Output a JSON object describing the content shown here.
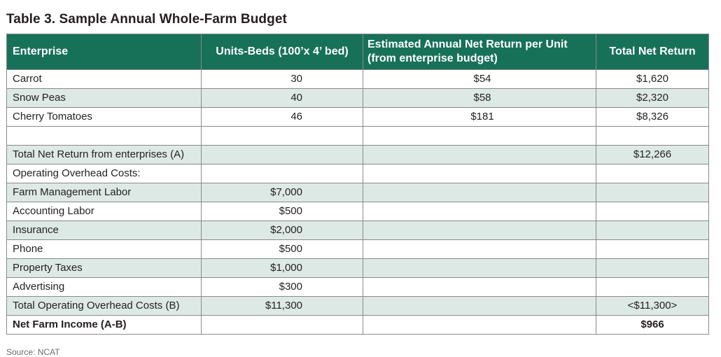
{
  "title": "Table 3. Sample Annual Whole-Farm Budget",
  "headers": {
    "enterprise": "Enterprise",
    "units": "Units-Beds (100’x 4’ bed)",
    "estimated_line1": "Estimated Annual Net Return per Unit",
    "estimated_line2": "(from enterprise budget)",
    "total": "Total  Net Return"
  },
  "rows": [
    {
      "label": "Carrot",
      "units": "30",
      "estimated": "$54",
      "total": "$1,620"
    },
    {
      "label": "Snow Peas",
      "units": "40",
      "estimated": "$58",
      "total": "$2,320"
    },
    {
      "label": "Cherry Tomatoes",
      "units": "46",
      "estimated": "$181",
      "total": "$8,326"
    },
    {
      "label": "",
      "units": "",
      "estimated": "",
      "total": ""
    },
    {
      "label": "Total  Net Return from enterprises (A)",
      "units": "",
      "estimated": "",
      "total": "$12,266"
    },
    {
      "label": "Operating Overhead Costs:",
      "units": "",
      "estimated": "",
      "total": ""
    },
    {
      "label": "Farm Management Labor",
      "units": "$7,000",
      "estimated": "",
      "total": ""
    },
    {
      "label": "Accounting Labor",
      "units": "$500",
      "estimated": "",
      "total": ""
    },
    {
      "label": "Insurance",
      "units": "$2,000",
      "estimated": "",
      "total": ""
    },
    {
      "label": "Phone",
      "units": "$500",
      "estimated": "",
      "total": ""
    },
    {
      "label": "Property Taxes",
      "units": "$1,000",
      "estimated": "",
      "total": ""
    },
    {
      "label": "Advertising",
      "units": "$300",
      "estimated": "",
      "total": ""
    },
    {
      "label": "Total Operating Overhead Costs (B)",
      "units": "$11,300",
      "estimated": "",
      "total": "<$11,300>"
    },
    {
      "label": "Net Farm Income (A-B)",
      "units": "",
      "estimated": "",
      "total": "$966"
    }
  ],
  "source": "Source: NCAT",
  "colors": {
    "header_bg": "#177158",
    "header_text": "#ffffff",
    "row_shade": "#dde9e5",
    "row_plain": "#ffffff",
    "border": "#8a8a8a"
  }
}
